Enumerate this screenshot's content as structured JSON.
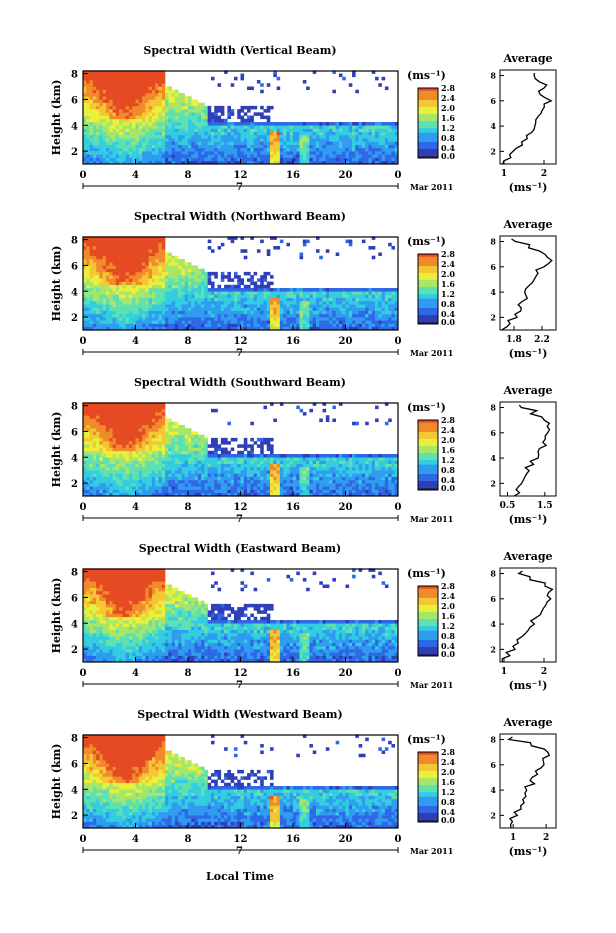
{
  "figure": {
    "xaxis_title": "Local Time",
    "date_label": "Mar 2011",
    "day_label": "7",
    "x_ticks": [
      "0",
      "4",
      "8",
      "12",
      "16",
      "20",
      "0"
    ],
    "y_ticks": [
      "2",
      "4",
      "6",
      "8"
    ],
    "ylabel": "Height (km)",
    "colorbar_units": "(ms⁻¹)",
    "colorbar_ticks": [
      "0.0",
      "0.4",
      "0.8",
      "1.2",
      "1.6",
      "2.0",
      "2.4",
      "2.8"
    ],
    "avg_title": "Average",
    "avg_xlabel": "(ms⁻¹)"
  },
  "colors": {
    "scale": [
      "#24246b",
      "#2e3fb8",
      "#2f68e6",
      "#2f9cf0",
      "#33cde0",
      "#5fe0b0",
      "#a8e66a",
      "#e9f03a",
      "#f4c633",
      "#f08a2a",
      "#e64a22"
    ]
  },
  "chart_data": [
    {
      "type": "heatmap",
      "title": "Spectral Width (Vertical Beam)",
      "xlabel": "",
      "ylabel": "Height (km)",
      "xlim": [
        0,
        24
      ],
      "ylim": [
        1,
        8.2
      ],
      "color_range": [
        0.0,
        3.0
      ],
      "avg_profile": {
        "x_ticks": [
          "1",
          "2"
        ],
        "xlim": [
          0.9,
          2.3
        ],
        "heights": [
          1.0,
          1.5,
          2.0,
          2.5,
          3.0,
          3.5,
          4.0,
          4.5,
          5.0,
          5.5,
          6.0,
          6.5,
          7.0,
          7.5,
          8.0
        ],
        "values": [
          1.05,
          1.1,
          1.3,
          1.45,
          1.6,
          1.7,
          1.75,
          1.85,
          1.95,
          2.0,
          2.1,
          1.85,
          2.05,
          1.8,
          1.7
        ]
      }
    },
    {
      "type": "heatmap",
      "title": "Spectral Width (Northward Beam)",
      "xlabel": "",
      "ylabel": "Height (km)",
      "xlim": [
        0,
        24
      ],
      "ylim": [
        1,
        8.2
      ],
      "color_range": [
        0.0,
        3.0
      ],
      "avg_profile": {
        "x_ticks": [
          "1.8",
          "2.2"
        ],
        "xlim": [
          1.6,
          2.4
        ],
        "heights": [
          1.0,
          1.5,
          2.0,
          2.5,
          3.0,
          3.5,
          4.0,
          4.5,
          5.0,
          5.5,
          6.0,
          6.5,
          7.0,
          7.5,
          8.0
        ],
        "values": [
          1.65,
          1.72,
          1.8,
          1.86,
          1.9,
          1.95,
          2.0,
          2.05,
          2.1,
          2.15,
          2.25,
          2.3,
          2.2,
          2.0,
          1.8
        ]
      }
    },
    {
      "type": "heatmap",
      "title": "Spectral Width (Southward Beam)",
      "xlabel": "",
      "ylabel": "Height (km)",
      "xlim": [
        0,
        24
      ],
      "ylim": [
        1,
        8.2
      ],
      "color_range": [
        0.0,
        3.0
      ],
      "avg_profile": {
        "x_ticks": [
          "0.5",
          "1.5"
        ],
        "xlim": [
          0.3,
          1.8
        ],
        "heights": [
          1.0,
          1.5,
          2.0,
          2.5,
          3.0,
          3.5,
          4.0,
          4.5,
          5.0,
          5.5,
          6.0,
          6.5,
          7.0,
          7.5,
          8.0
        ],
        "values": [
          0.75,
          0.8,
          0.85,
          0.95,
          1.05,
          1.15,
          1.25,
          1.35,
          1.45,
          1.55,
          1.65,
          1.6,
          1.45,
          1.2,
          0.9
        ]
      }
    },
    {
      "type": "heatmap",
      "title": "Spectral Width (Eastward Beam)",
      "xlabel": "",
      "ylabel": "Height (km)",
      "xlim": [
        0,
        24
      ],
      "ylim": [
        1,
        8.2
      ],
      "color_range": [
        0.0,
        3.0
      ],
      "avg_profile": {
        "x_ticks": [
          "1",
          "2"
        ],
        "xlim": [
          0.9,
          2.3
        ],
        "heights": [
          1.0,
          1.5,
          2.0,
          2.5,
          3.0,
          3.5,
          4.0,
          4.5,
          5.0,
          5.5,
          6.0,
          6.5,
          7.0,
          7.5,
          8.0
        ],
        "values": [
          1.0,
          1.1,
          1.2,
          1.35,
          1.5,
          1.65,
          1.75,
          1.85,
          1.95,
          2.05,
          2.15,
          2.2,
          2.05,
          1.7,
          1.4
        ]
      }
    },
    {
      "type": "heatmap",
      "title": "Spectral Width (Westward Beam)",
      "xlabel": "Local Time",
      "ylabel": "Height (km)",
      "xlim": [
        0,
        24
      ],
      "ylim": [
        1,
        8.2
      ],
      "color_range": [
        0.0,
        3.0
      ],
      "avg_profile": {
        "x_ticks": [
          "1",
          "2"
        ],
        "xlim": [
          0.6,
          2.3
        ],
        "heights": [
          1.0,
          1.5,
          2.0,
          2.5,
          3.0,
          3.5,
          4.0,
          4.5,
          5.0,
          5.5,
          6.0,
          6.5,
          7.0,
          7.5,
          8.0
        ],
        "values": [
          0.95,
          1.0,
          1.1,
          1.2,
          1.3,
          1.4,
          1.45,
          1.55,
          1.65,
          1.75,
          1.85,
          2.0,
          2.0,
          1.5,
          0.9
        ]
      }
    }
  ]
}
